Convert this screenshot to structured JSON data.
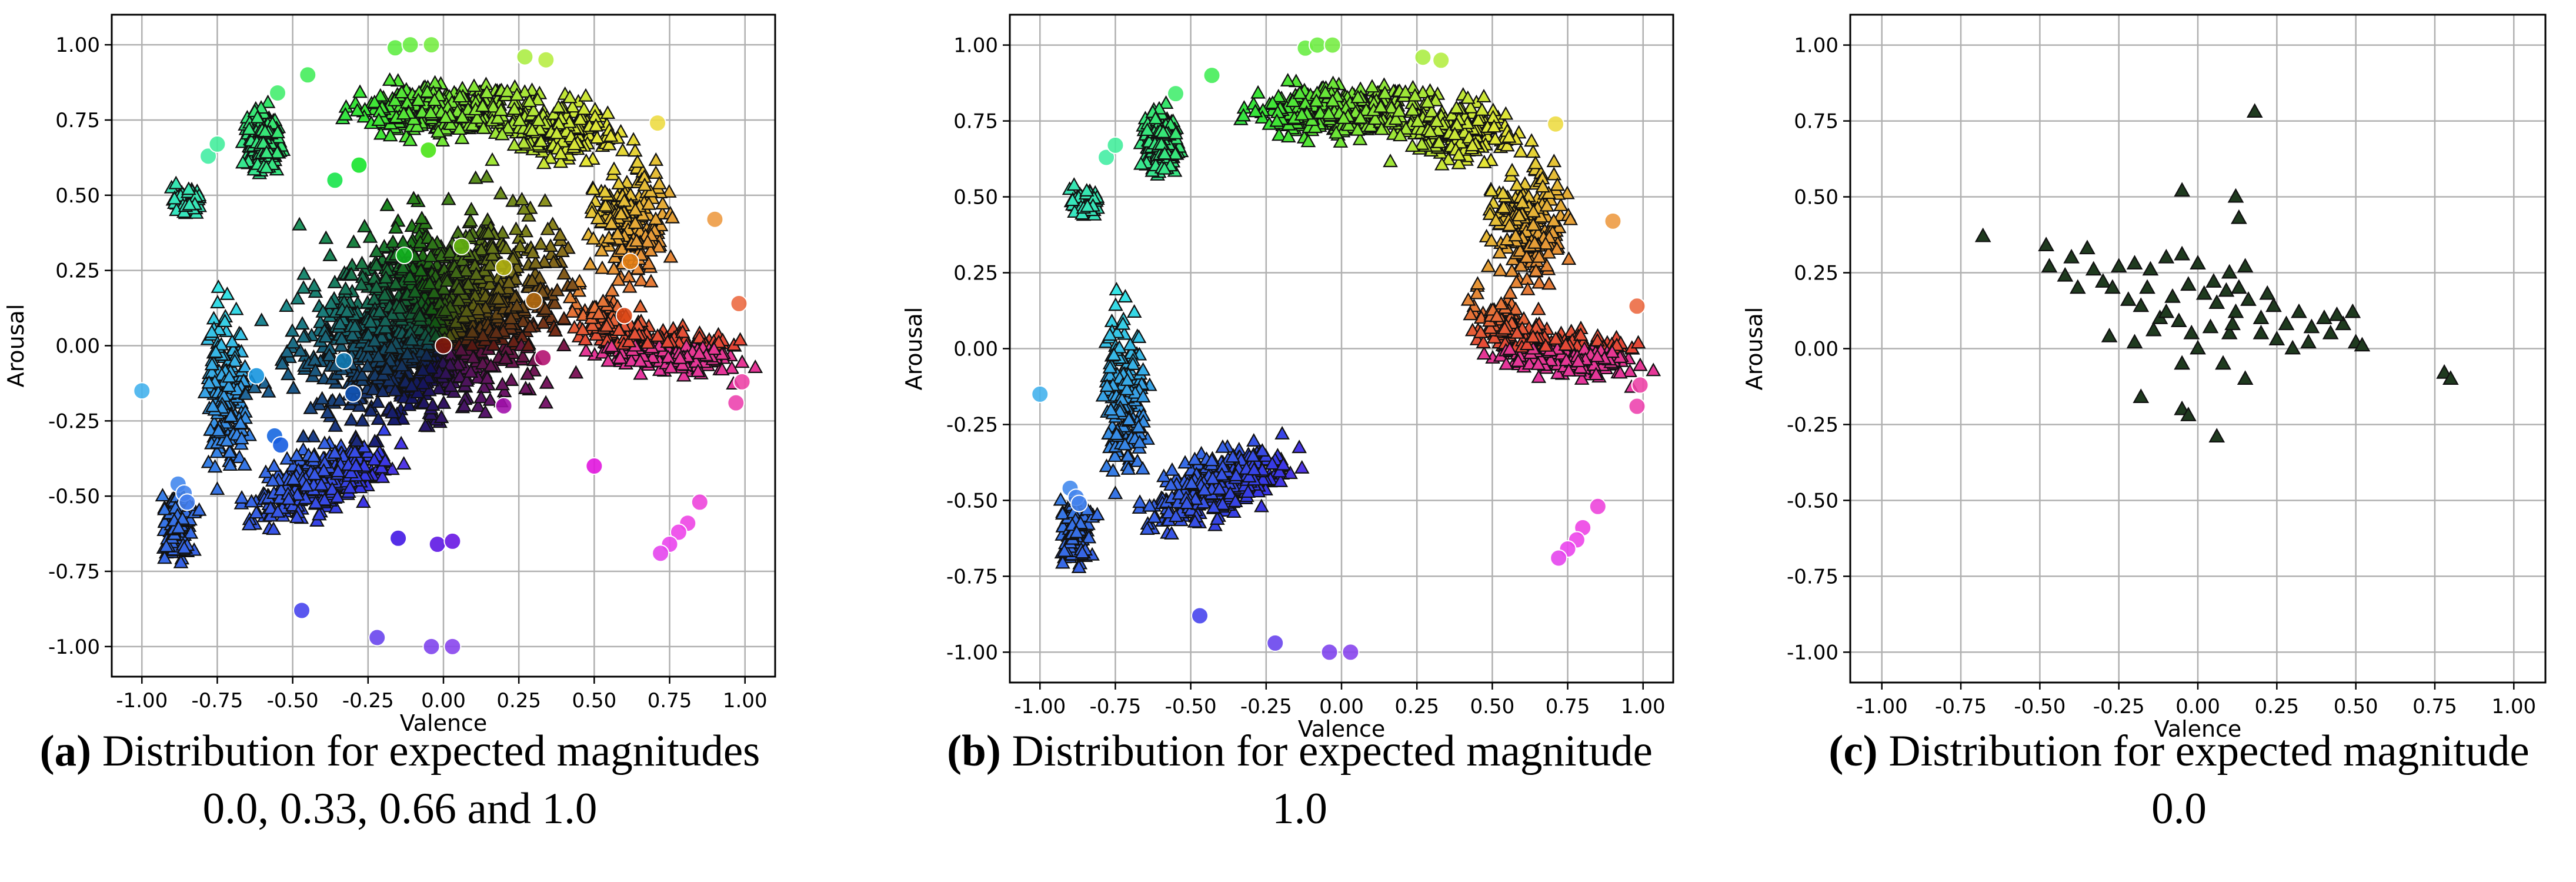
{
  "chart_data": [
    {
      "id": "a",
      "type": "scatter",
      "xlabel": "Valence",
      "ylabel": "Arousal",
      "xlim": [
        -1.1,
        1.1
      ],
      "ylim": [
        -1.1,
        1.1
      ],
      "xticks": [
        "-1.00",
        "-0.75",
        "-0.50",
        "-0.25",
        "0.00",
        "0.25",
        "0.50",
        "0.75",
        "1.00"
      ],
      "yticks": [
        "1.00",
        "0.75",
        "0.50",
        "0.25",
        "0.00",
        "-0.25",
        "-0.50",
        "-0.75",
        "-1.00"
      ],
      "grid": true,
      "markers": "triangles = samples, circles = expected emotion positions",
      "magnitudes_shown": [
        0.0,
        0.33,
        0.66,
        1.0
      ],
      "circle_points": [
        [
          -1.0,
          -0.15
        ],
        [
          -0.88,
          -0.46
        ],
        [
          -0.86,
          -0.49
        ],
        [
          -0.85,
          -0.52
        ],
        [
          -0.78,
          0.63
        ],
        [
          -0.75,
          0.67
        ],
        [
          -0.55,
          0.84
        ],
        [
          -0.45,
          0.9
        ],
        [
          -0.47,
          -0.88
        ],
        [
          -0.22,
          -0.97
        ],
        [
          -0.04,
          -1.0
        ],
        [
          0.03,
          -1.0
        ],
        [
          -0.16,
          0.99
        ],
        [
          -0.11,
          1.0
        ],
        [
          -0.04,
          1.0
        ],
        [
          0.27,
          0.96
        ],
        [
          0.34,
          0.95
        ],
        [
          0.71,
          0.74
        ],
        [
          0.9,
          0.42
        ],
        [
          0.98,
          0.14
        ],
        [
          0.99,
          -0.12
        ],
        [
          0.97,
          -0.19
        ],
        [
          0.85,
          -0.52
        ],
        [
          0.81,
          -0.59
        ],
        [
          0.78,
          -0.62
        ],
        [
          0.75,
          -0.66
        ],
        [
          0.72,
          -0.69
        ],
        [
          -0.62,
          -0.1
        ],
        [
          -0.56,
          -0.3
        ],
        [
          -0.54,
          -0.33
        ],
        [
          -0.36,
          0.55
        ],
        [
          -0.28,
          0.6
        ],
        [
          -0.05,
          0.65
        ],
        [
          0.06,
          0.33
        ],
        [
          0.2,
          0.26
        ],
        [
          -0.33,
          -0.05
        ],
        [
          -0.3,
          -0.16
        ],
        [
          -0.13,
          0.3
        ],
        [
          0.2,
          -0.2
        ],
        [
          0.3,
          0.15
        ],
        [
          0.5,
          -0.4
        ],
        [
          0.6,
          0.1
        ],
        [
          -0.15,
          -0.64
        ],
        [
          -0.02,
          -0.66
        ],
        [
          0.03,
          -0.65
        ],
        [
          0.0,
          0.0
        ],
        [
          0.33,
          -0.04
        ],
        [
          0.62,
          0.28
        ]
      ]
    },
    {
      "id": "b",
      "type": "scatter",
      "xlabel": "Valence",
      "ylabel": "Arousal",
      "xlim": [
        -1.1,
        1.1
      ],
      "ylim": [
        -1.1,
        1.1
      ],
      "xticks": [
        "-1.00",
        "-0.75",
        "-0.50",
        "-0.25",
        "0.00",
        "0.25",
        "0.50",
        "0.75",
        "1.00"
      ],
      "yticks": [
        "1.00",
        "0.75",
        "0.50",
        "0.25",
        "0.00",
        "-0.25",
        "-0.50",
        "-0.75",
        "-1.00"
      ],
      "grid": true,
      "magnitudes_shown": [
        1.0
      ],
      "circle_points": [
        [
          -1.0,
          -0.15
        ],
        [
          -0.9,
          -0.46
        ],
        [
          -0.88,
          -0.49
        ],
        [
          -0.87,
          -0.51
        ],
        [
          -0.78,
          0.63
        ],
        [
          -0.75,
          0.67
        ],
        [
          -0.55,
          0.84
        ],
        [
          -0.43,
          0.9
        ],
        [
          -0.47,
          -0.88
        ],
        [
          -0.22,
          -0.97
        ],
        [
          -0.04,
          -1.0
        ],
        [
          0.03,
          -1.0
        ],
        [
          -0.12,
          0.99
        ],
        [
          -0.08,
          1.0
        ],
        [
          -0.03,
          1.0
        ],
        [
          0.27,
          0.96
        ],
        [
          0.33,
          0.95
        ],
        [
          0.71,
          0.74
        ],
        [
          0.9,
          0.42
        ],
        [
          0.98,
          0.14
        ],
        [
          0.99,
          -0.12
        ],
        [
          0.98,
          -0.19
        ],
        [
          0.85,
          -0.52
        ],
        [
          0.8,
          -0.59
        ],
        [
          0.78,
          -0.63
        ],
        [
          0.75,
          -0.66
        ],
        [
          0.72,
          -0.69
        ]
      ]
    },
    {
      "id": "c",
      "type": "scatter",
      "xlabel": "Valence",
      "ylabel": "Arousal",
      "xlim": [
        -1.1,
        1.1
      ],
      "ylim": [
        -1.1,
        1.1
      ],
      "xticks": [
        "-1.00",
        "-0.75",
        "-0.50",
        "-0.25",
        "0.00",
        "0.25",
        "0.50",
        "0.75",
        "1.00"
      ],
      "yticks": [
        "1.00",
        "0.75",
        "0.50",
        "0.25",
        "0.00",
        "-0.25",
        "-0.50",
        "-0.75",
        "-1.00"
      ],
      "grid": true,
      "magnitudes_shown": [
        0.0
      ],
      "marker_color": "#1f3a1f",
      "triangle_points": [
        [
          -0.68,
          0.37
        ],
        [
          0.18,
          0.78
        ],
        [
          -0.05,
          0.52
        ],
        [
          0.12,
          0.5
        ],
        [
          0.13,
          0.43
        ],
        [
          -0.48,
          0.34
        ],
        [
          -0.47,
          0.27
        ],
        [
          -0.4,
          0.3
        ],
        [
          -0.35,
          0.33
        ],
        [
          -0.33,
          0.26
        ],
        [
          -0.3,
          0.22
        ],
        [
          -0.27,
          0.2
        ],
        [
          -0.2,
          0.28
        ],
        [
          -0.15,
          0.26
        ],
        [
          -0.1,
          0.3
        ],
        [
          -0.05,
          0.31
        ],
        [
          0.0,
          0.28
        ],
        [
          0.05,
          0.22
        ],
        [
          0.1,
          0.25
        ],
        [
          0.15,
          0.27
        ],
        [
          -0.42,
          0.24
        ],
        [
          -0.38,
          0.2
        ],
        [
          -0.25,
          0.27
        ],
        [
          -0.22,
          0.16
        ],
        [
          -0.18,
          0.14
        ],
        [
          -0.12,
          0.1
        ],
        [
          -0.08,
          0.17
        ],
        [
          -0.03,
          0.21
        ],
        [
          0.02,
          0.18
        ],
        [
          0.06,
          0.15
        ],
        [
          0.09,
          0.19
        ],
        [
          0.12,
          0.12
        ],
        [
          0.16,
          0.16
        ],
        [
          0.2,
          0.1
        ],
        [
          0.24,
          0.14
        ],
        [
          0.28,
          0.08
        ],
        [
          0.32,
          0.12
        ],
        [
          0.36,
          0.07
        ],
        [
          0.4,
          0.1
        ],
        [
          0.42,
          0.05
        ],
        [
          0.46,
          0.08
        ],
        [
          0.49,
          0.12
        ],
        [
          0.5,
          0.02
        ],
        [
          0.52,
          0.01
        ],
        [
          0.3,
          0.0
        ],
        [
          0.25,
          0.03
        ],
        [
          0.2,
          0.05
        ],
        [
          0.1,
          0.05
        ],
        [
          0.04,
          0.07
        ],
        [
          -0.02,
          0.05
        ],
        [
          -0.06,
          0.09
        ],
        [
          -0.1,
          0.12
        ],
        [
          -0.14,
          0.06
        ],
        [
          -0.2,
          0.02
        ],
        [
          -0.28,
          0.04
        ],
        [
          0.0,
          0.0
        ],
        [
          -0.05,
          -0.05
        ],
        [
          0.08,
          -0.05
        ],
        [
          0.15,
          -0.1
        ],
        [
          -0.18,
          -0.16
        ],
        [
          -0.05,
          -0.2
        ],
        [
          -0.03,
          -0.22
        ],
        [
          0.06,
          -0.29
        ],
        [
          0.22,
          0.18
        ],
        [
          0.35,
          0.02
        ],
        [
          0.78,
          -0.08
        ],
        [
          0.8,
          -0.1
        ],
        [
          0.44,
          0.11
        ],
        [
          -0.16,
          0.2
        ],
        [
          0.13,
          0.2
        ],
        [
          0.11,
          0.08
        ]
      ]
    }
  ],
  "captions": {
    "a": {
      "label": "(a)",
      "text": "Distribution for expected magnitudes",
      "line2": "0.0, 0.33, 0.66 and 1.0"
    },
    "b": {
      "label": "(b)",
      "text": "Distribution for expected magnitude",
      "line2": "1.0"
    },
    "c": {
      "label": "(c)",
      "text": "Distribution for expected magnitude",
      "line2": "0.0"
    }
  }
}
